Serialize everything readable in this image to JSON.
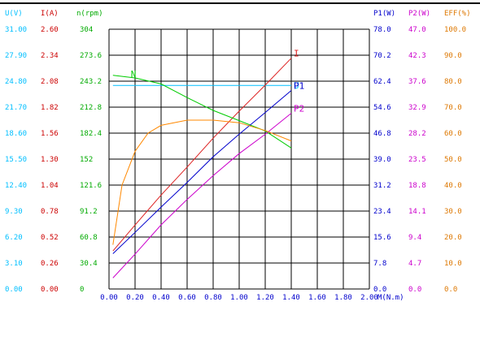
{
  "chart_data": {
    "type": "line",
    "xlabel": "M(N.m)",
    "x_ticks": [
      "0.00",
      "0.20",
      "0.40",
      "0.60",
      "0.80",
      "1.00",
      "1.20",
      "1.40",
      "1.60",
      "1.80",
      "2.00"
    ],
    "xlim": [
      0,
      2.0
    ],
    "axes": [
      {
        "key": "U",
        "header": "U(V)",
        "color": "#00bfff",
        "ticks": [
          "0.00",
          "3.10",
          "6.20",
          "9.30",
          "12.40",
          "15.50",
          "18.60",
          "21.70",
          "24.80",
          "27.90",
          "31.00"
        ],
        "min": 0,
        "max": 31.0
      },
      {
        "key": "I",
        "header": "I(A)",
        "color": "#cc0000",
        "ticks": [
          "0.00",
          "0.26",
          "0.52",
          "0.78",
          "1.04",
          "1.30",
          "1.56",
          "1.82",
          "2.08",
          "2.34",
          "2.60"
        ],
        "min": 0,
        "max": 2.6
      },
      {
        "key": "n",
        "header": "n(rpm)",
        "color": "#00aa00",
        "ticks": [
          "0",
          "30.4",
          "60.8",
          "91.2",
          "121.6",
          "152",
          "182.4",
          "212.8",
          "243.2",
          "273.6",
          "304"
        ],
        "min": 0,
        "max": 304
      },
      {
        "key": "P1",
        "header": "P1(W)",
        "color": "#0000cc",
        "ticks": [
          "0.0",
          "7.8",
          "15.6",
          "23.4",
          "31.2",
          "39.0",
          "46.8",
          "54.6",
          "62.4",
          "70.2",
          "78.0"
        ],
        "min": 0,
        "max": 78.0
      },
      {
        "key": "P2",
        "header": "P2(W)",
        "color": "#cc00cc",
        "ticks": [
          "0.0",
          "4.7",
          "9.4",
          "14.1",
          "18.8",
          "23.5",
          "28.2",
          "32.9",
          "37.6",
          "42.3",
          "47.0"
        ],
        "min": 0,
        "max": 47.0
      },
      {
        "key": "EFF",
        "header": "EFF(%)",
        "color": "#dd7700",
        "ticks": [
          "0.0",
          "10.0",
          "20.0",
          "30.0",
          "40.0",
          "50.0",
          "60.0",
          "70.0",
          "80.0",
          "90.0",
          "100.0"
        ],
        "min": 0,
        "max": 100.0
      }
    ],
    "series": [
      {
        "name": "U",
        "axis": "U",
        "color": "#00bfff",
        "x": [
          0.03,
          1.4
        ],
        "y": [
          24.3,
          24.3
        ]
      },
      {
        "name": "I",
        "axis": "I",
        "color": "#dd2222",
        "x": [
          0.03,
          0.2,
          0.4,
          0.6,
          0.8,
          1.0,
          1.2,
          1.4
        ],
        "y": [
          0.38,
          0.64,
          0.94,
          1.22,
          1.51,
          1.78,
          2.04,
          2.31
        ]
      },
      {
        "name": "N",
        "axis": "n",
        "color": "#00cc00",
        "x": [
          0.03,
          0.2,
          0.4,
          0.6,
          0.8,
          1.0,
          1.2,
          1.4
        ],
        "y": [
          250,
          247,
          240,
          224,
          209,
          197,
          185,
          165
        ]
      },
      {
        "name": "P1",
        "axis": "P1",
        "color": "#0000cc",
        "x": [
          0.03,
          0.2,
          0.4,
          0.6,
          0.8,
          1.0,
          1.2,
          1.4
        ],
        "y": [
          10.6,
          17.0,
          24.6,
          32.0,
          39.7,
          46.5,
          53.0,
          59.6
        ]
      },
      {
        "name": "P2",
        "axis": "P2",
        "color": "#cc00cc",
        "x": [
          0.03,
          0.2,
          0.4,
          0.6,
          0.8,
          1.0,
          1.2,
          1.4
        ],
        "y": [
          2.0,
          6.3,
          11.6,
          16.2,
          20.5,
          24.5,
          28.0,
          31.8
        ]
      },
      {
        "name": "",
        "axis": "EFF",
        "color": "#ff8800",
        "x": [
          0.03,
          0.1,
          0.2,
          0.3,
          0.4,
          0.6,
          0.8,
          1.0,
          1.2,
          1.4
        ],
        "y": [
          17,
          40,
          53,
          60,
          63,
          65,
          65,
          64,
          61,
          57
        ]
      }
    ],
    "grid": true
  }
}
